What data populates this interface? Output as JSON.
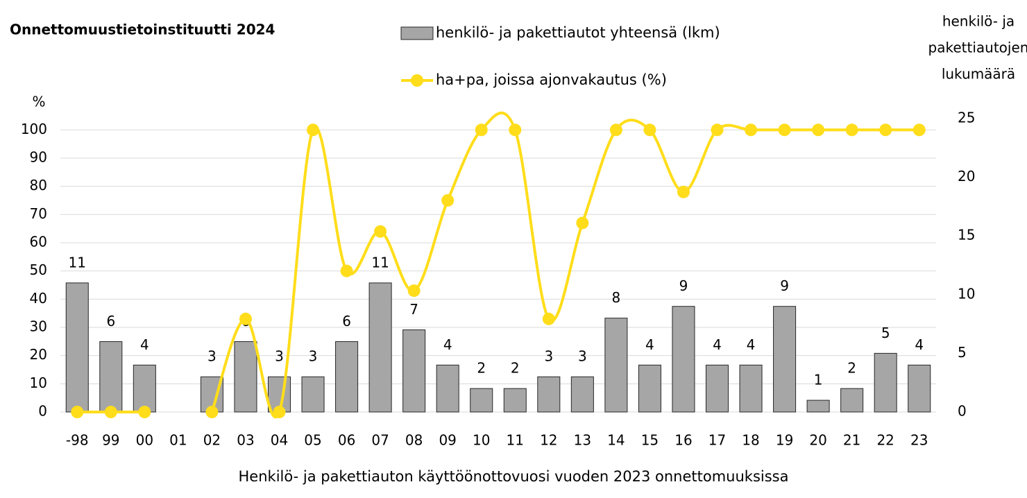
{
  "chart_data": {
    "type": "bar_line",
    "title": "Onnettomuustietoinstituutti  2024",
    "x_label": "Henkilö- ja pakettiauton käyttöönottovuosi vuoden 2023 onnettomuuksissa",
    "y_label": "%",
    "y2_label": [
      "henkilö- ja",
      "pakettiautojen",
      "lukumäärä"
    ],
    "categories": [
      "-98",
      "99",
      "00",
      "01",
      "02",
      "03",
      "04",
      "05",
      "06",
      "07",
      "08",
      "09",
      "10",
      "11",
      "12",
      "13",
      "14",
      "15",
      "16",
      "17",
      "18",
      "19",
      "20",
      "21",
      "22",
      "23"
    ],
    "series": [
      {
        "name": "henkilö- ja pakettiautot yhteensä (lkm)",
        "type": "bar",
        "axis": "y2",
        "color": "#a6a6a6",
        "values": [
          11,
          6,
          4,
          null,
          3,
          6,
          3,
          3,
          6,
          11,
          7,
          4,
          2,
          2,
          3,
          3,
          8,
          4,
          9,
          4,
          4,
          9,
          1,
          2,
          5,
          4
        ]
      },
      {
        "name": "ha+pa, joissa ajonvakautus (%)",
        "type": "line",
        "axis": "y",
        "color": "#ffdd1a",
        "values": [
          0,
          0,
          0,
          null,
          0,
          33,
          0,
          100,
          50,
          64,
          43,
          75,
          100,
          100,
          33,
          67,
          100,
          100,
          78,
          100,
          100,
          100,
          100,
          100,
          100,
          100
        ]
      }
    ],
    "ylim": [
      0,
      104
    ],
    "yticks": [
      0,
      10,
      20,
      30,
      40,
      50,
      60,
      70,
      80,
      90,
      100
    ],
    "y2lim": [
      0,
      25
    ],
    "y2ticks": [
      0,
      5,
      10,
      15,
      20,
      25
    ],
    "grid": true,
    "legend": "top"
  }
}
